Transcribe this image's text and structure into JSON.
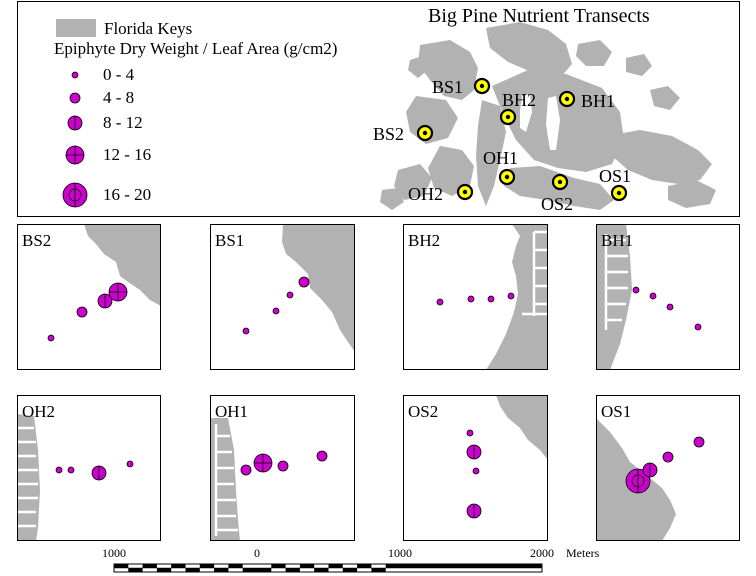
{
  "title": "Big Pine Nutrient Transects",
  "legend": {
    "land_label": "Florida Keys",
    "size_title": "Epiphyte Dry Weight / Leaf Area (g/cm2)",
    "classes": [
      "0 - 4",
      "4 - 8",
      "8 - 12",
      "12 - 16",
      "16 - 20"
    ]
  },
  "overview_sites": [
    "BS1",
    "BH2",
    "BH1",
    "BS2",
    "OH1",
    "OH2",
    "OS2",
    "OS1"
  ],
  "panels": [
    {
      "label": "BS2",
      "samples": [
        1,
        2,
        3,
        4
      ]
    },
    {
      "label": "BS1",
      "samples": [
        1,
        1,
        1,
        2
      ]
    },
    {
      "label": "BH2",
      "samples": [
        1,
        1,
        1,
        1
      ]
    },
    {
      "label": "BH1",
      "samples": [
        1,
        1,
        1,
        1
      ]
    },
    {
      "label": "OH2",
      "samples": [
        1,
        1,
        3,
        1
      ]
    },
    {
      "label": "OH1",
      "samples": [
        2,
        4,
        2,
        2
      ]
    },
    {
      "label": "OS2",
      "samples": [
        1,
        3,
        1,
        3
      ]
    },
    {
      "label": "OS1",
      "samples": [
        5,
        3,
        2,
        2
      ]
    }
  ],
  "scalebar": {
    "ticks": [
      "1000",
      "0",
      "1000",
      "2000"
    ],
    "unit": "Meters"
  },
  "colors": {
    "land": "#b2b2b2",
    "sample": "#cc00cc",
    "site_marker": "#ffff00"
  }
}
